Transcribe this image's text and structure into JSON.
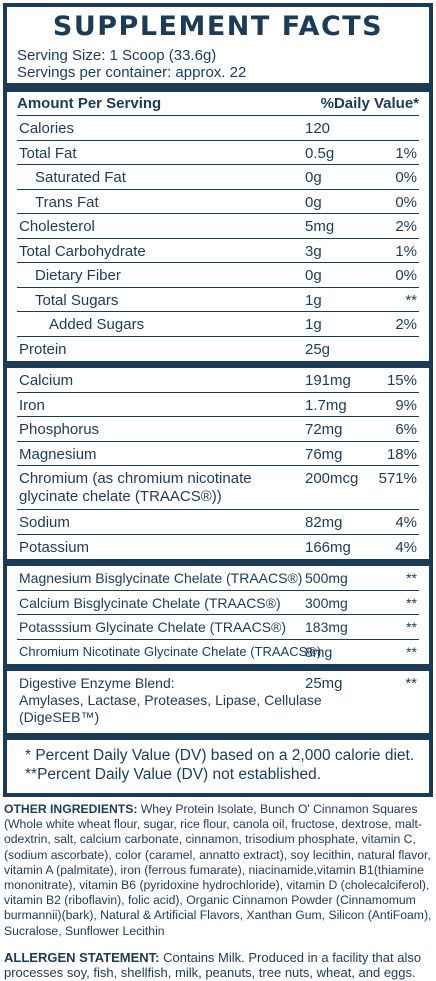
{
  "title": "SUPPLEMENT FACTS",
  "serving_size": "Serving Size: 1 Scoop (33.6g)",
  "servings_per_container": "Servings per container: approx. 22",
  "header": {
    "amount": "Amount Per Serving",
    "dv": "%Daily Value*"
  },
  "rows": [
    {
      "name": "Calories",
      "amount": "120",
      "dv": ""
    },
    {
      "name": "Total Fat",
      "amount": "0.5g",
      "dv": "1%"
    },
    {
      "name": "Saturated Fat",
      "amount": "0g",
      "dv": "0%"
    },
    {
      "name": "Trans Fat",
      "amount": "0g",
      "dv": "0%"
    },
    {
      "name": "Cholesterol",
      "amount": "5mg",
      "dv": "2%"
    },
    {
      "name": "Total Carbohydrate",
      "amount": "3g",
      "dv": "1%"
    },
    {
      "name": "Dietary Fiber",
      "amount": "0g",
      "dv": "0%"
    },
    {
      "name": "Total Sugars",
      "amount": "1g",
      "dv": "**"
    },
    {
      "name": "Added Sugars",
      "amount": "1g",
      "dv": "2%"
    },
    {
      "name": "Protein",
      "amount": "25g",
      "dv": ""
    }
  ],
  "minerals": [
    {
      "name": "Calcium",
      "amount": "191mg",
      "dv": "15%"
    },
    {
      "name": "Iron",
      "amount": "1.7mg",
      "dv": "9%"
    },
    {
      "name": "Phosphorus",
      "amount": "72mg",
      "dv": "6%"
    },
    {
      "name": "Magnesium",
      "amount": "76mg",
      "dv": "18%"
    },
    {
      "name_line1": "Chromium (as chromium nicotinate",
      "name_line2": "glycinate chelate (TRAACS®))",
      "amount": "200mcg",
      "dv": "571%"
    },
    {
      "name": "Sodium",
      "amount": "82mg",
      "dv": "4%"
    },
    {
      "name": "Potassium",
      "amount": "166mg",
      "dv": "4%"
    }
  ],
  "chelates": [
    {
      "name": "Magnesium Bisglycinate Chelate (TRAACS®)",
      "amount": "500mg",
      "dv": "**"
    },
    {
      "name": "Calcium Bisglycinate Chelate (TRAACS®)",
      "amount": "300mg",
      "dv": "**"
    },
    {
      "name": "Potasssium Glycinate Chelate (TRAACS®)",
      "amount": "183mg",
      "dv": "**"
    },
    {
      "name": "Chromium Nicotinate Glycinate Chelate (TRAACS®)",
      "amount": "8mg",
      "dv": "**"
    }
  ],
  "blend": {
    "line1": "Digestive Enzyme Blend:",
    "line2": "Amylases, Lactase, Proteases, Lipase, Cellulase",
    "line3": "(DigeSEB™)",
    "amount": "25mg",
    "dv": "**"
  },
  "footnote1": "* Percent Daily Value (DV) based on a 2,000 calorie diet.",
  "footnote2": "**Percent Daily Value (DV) not established.",
  "other_label": "OTHER INGREDIENTS:",
  "other_text": " Whey Protein Isolate, Bunch O' Cinnamon Squares (Whole white wheat flour, sugar, rice flour, canola oil, fructose, dextrose, malt- odextrin, salt, calcium carbonate, cinnamon, trisodium phosphate, vitamin C, (sodium ascorbate), color (caramel, annatto extract), soy lecithin, natural flavor, vitamin A (palmitate), iron (ferrous fumarate), niacinamide,vitamin B1(thiamine mononitrate), vitamin B6 (pyridoxine hydrochloride), vitamin D (cholecalciferol), vitamin B2 (riboflavin), folic acid), Organic Cinnamon Powder (Cinnamomum burmannii)(bark), Natural & Artificial Flavors, Xanthan Gum, Silicon (AntiFoam), Sucralose, Sunflower Lecithin",
  "allergen_label": "ALLERGEN STATEMENT:",
  "allergen_text": " Contains Milk. Produced in a facility that also processes soy, fish, shellfish, milk, peanuts, tree nuts, wheat, and eggs."
}
